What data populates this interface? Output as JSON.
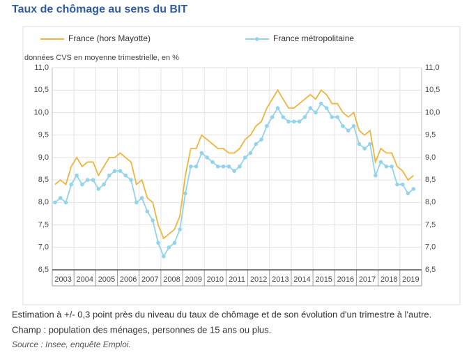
{
  "chart_data": {
    "type": "line",
    "title": "Taux de chômage au sens du BIT",
    "subtitle": "données CVS en moyenne trimestrielle, en %",
    "categories": [
      "2003",
      null,
      null,
      null,
      "2004",
      null,
      null,
      null,
      "2005",
      null,
      null,
      null,
      "2006",
      null,
      null,
      null,
      "2007",
      null,
      null,
      null,
      "2008",
      null,
      null,
      null,
      "2009",
      null,
      null,
      null,
      "2010",
      null,
      null,
      null,
      "2011",
      null,
      null,
      null,
      "2012",
      null,
      null,
      null,
      "2013",
      null,
      null,
      null,
      "2014",
      null,
      null,
      null,
      "2015",
      null,
      null,
      null,
      "2016",
      null,
      null,
      null,
      "2017",
      null,
      null,
      null,
      "2018",
      null,
      null,
      null,
      "2019",
      null,
      null,
      null
    ],
    "series": [
      {
        "name": "France (hors Mayotte)",
        "color": "#f0b43c",
        "markers": false,
        "values": [
          8.4,
          8.5,
          8.4,
          8.8,
          9.0,
          8.8,
          8.9,
          8.9,
          8.6,
          8.8,
          9.0,
          9.0,
          9.1,
          9.0,
          8.9,
          8.4,
          8.5,
          8.1,
          8.0,
          7.5,
          7.2,
          7.3,
          7.4,
          7.7,
          8.6,
          9.2,
          9.2,
          9.5,
          9.4,
          9.3,
          9.2,
          9.2,
          9.1,
          9.1,
          9.2,
          9.4,
          9.5,
          9.7,
          9.8,
          10.1,
          10.3,
          10.5,
          10.3,
          10.1,
          10.1,
          10.2,
          10.3,
          10.4,
          10.3,
          10.5,
          10.4,
          10.2,
          10.2,
          10.0,
          9.9,
          10.0,
          9.6,
          9.5,
          9.6,
          8.9,
          9.2,
          9.1,
          9.1,
          8.8,
          8.7,
          8.5,
          8.6,
          null
        ]
      },
      {
        "name": "France métropolitaine",
        "color": "#93d4ea",
        "markers": true,
        "values": [
          8.0,
          8.1,
          8.0,
          8.4,
          8.6,
          8.4,
          8.5,
          8.5,
          8.3,
          8.4,
          8.6,
          8.7,
          8.7,
          8.6,
          8.5,
          8.0,
          8.1,
          7.8,
          7.6,
          7.1,
          6.8,
          7.0,
          7.1,
          7.4,
          8.2,
          8.8,
          8.8,
          9.1,
          9.0,
          8.9,
          8.8,
          8.8,
          8.8,
          8.7,
          8.8,
          9.0,
          9.1,
          9.3,
          9.4,
          9.7,
          9.9,
          10.1,
          9.9,
          9.8,
          9.8,
          9.8,
          9.9,
          10.1,
          10.0,
          10.2,
          10.1,
          9.9,
          9.9,
          9.7,
          9.6,
          9.7,
          9.3,
          9.2,
          9.3,
          8.6,
          8.9,
          8.8,
          8.8,
          8.4,
          8.4,
          8.2,
          8.3,
          null
        ]
      }
    ],
    "ylim": [
      6.5,
      11.0
    ],
    "yticks": [
      {
        "value": 6.5,
        "label": "6,5"
      },
      {
        "value": 7.0,
        "label": "7,0"
      },
      {
        "value": 7.5,
        "label": "7,5"
      },
      {
        "value": 8.0,
        "label": "8,0"
      },
      {
        "value": 8.5,
        "label": "8,5"
      },
      {
        "value": 9.0,
        "label": "9,0"
      },
      {
        "value": 9.5,
        "label": "9,5"
      },
      {
        "value": 10.0,
        "label": "10,0"
      },
      {
        "value": 10.5,
        "label": "10,5"
      },
      {
        "value": 11.0,
        "label": "11,0"
      }
    ],
    "grid": true,
    "legend": "top",
    "notes": [
      "Estimation à +/- 0,3 point près du niveau du taux de chômage et de son évolution d'un trimestre à l'autre.",
      "Champ : population des ménages, personnes de 15 ans ou plus."
    ],
    "source": "Source : Insee, enquête Emploi."
  }
}
